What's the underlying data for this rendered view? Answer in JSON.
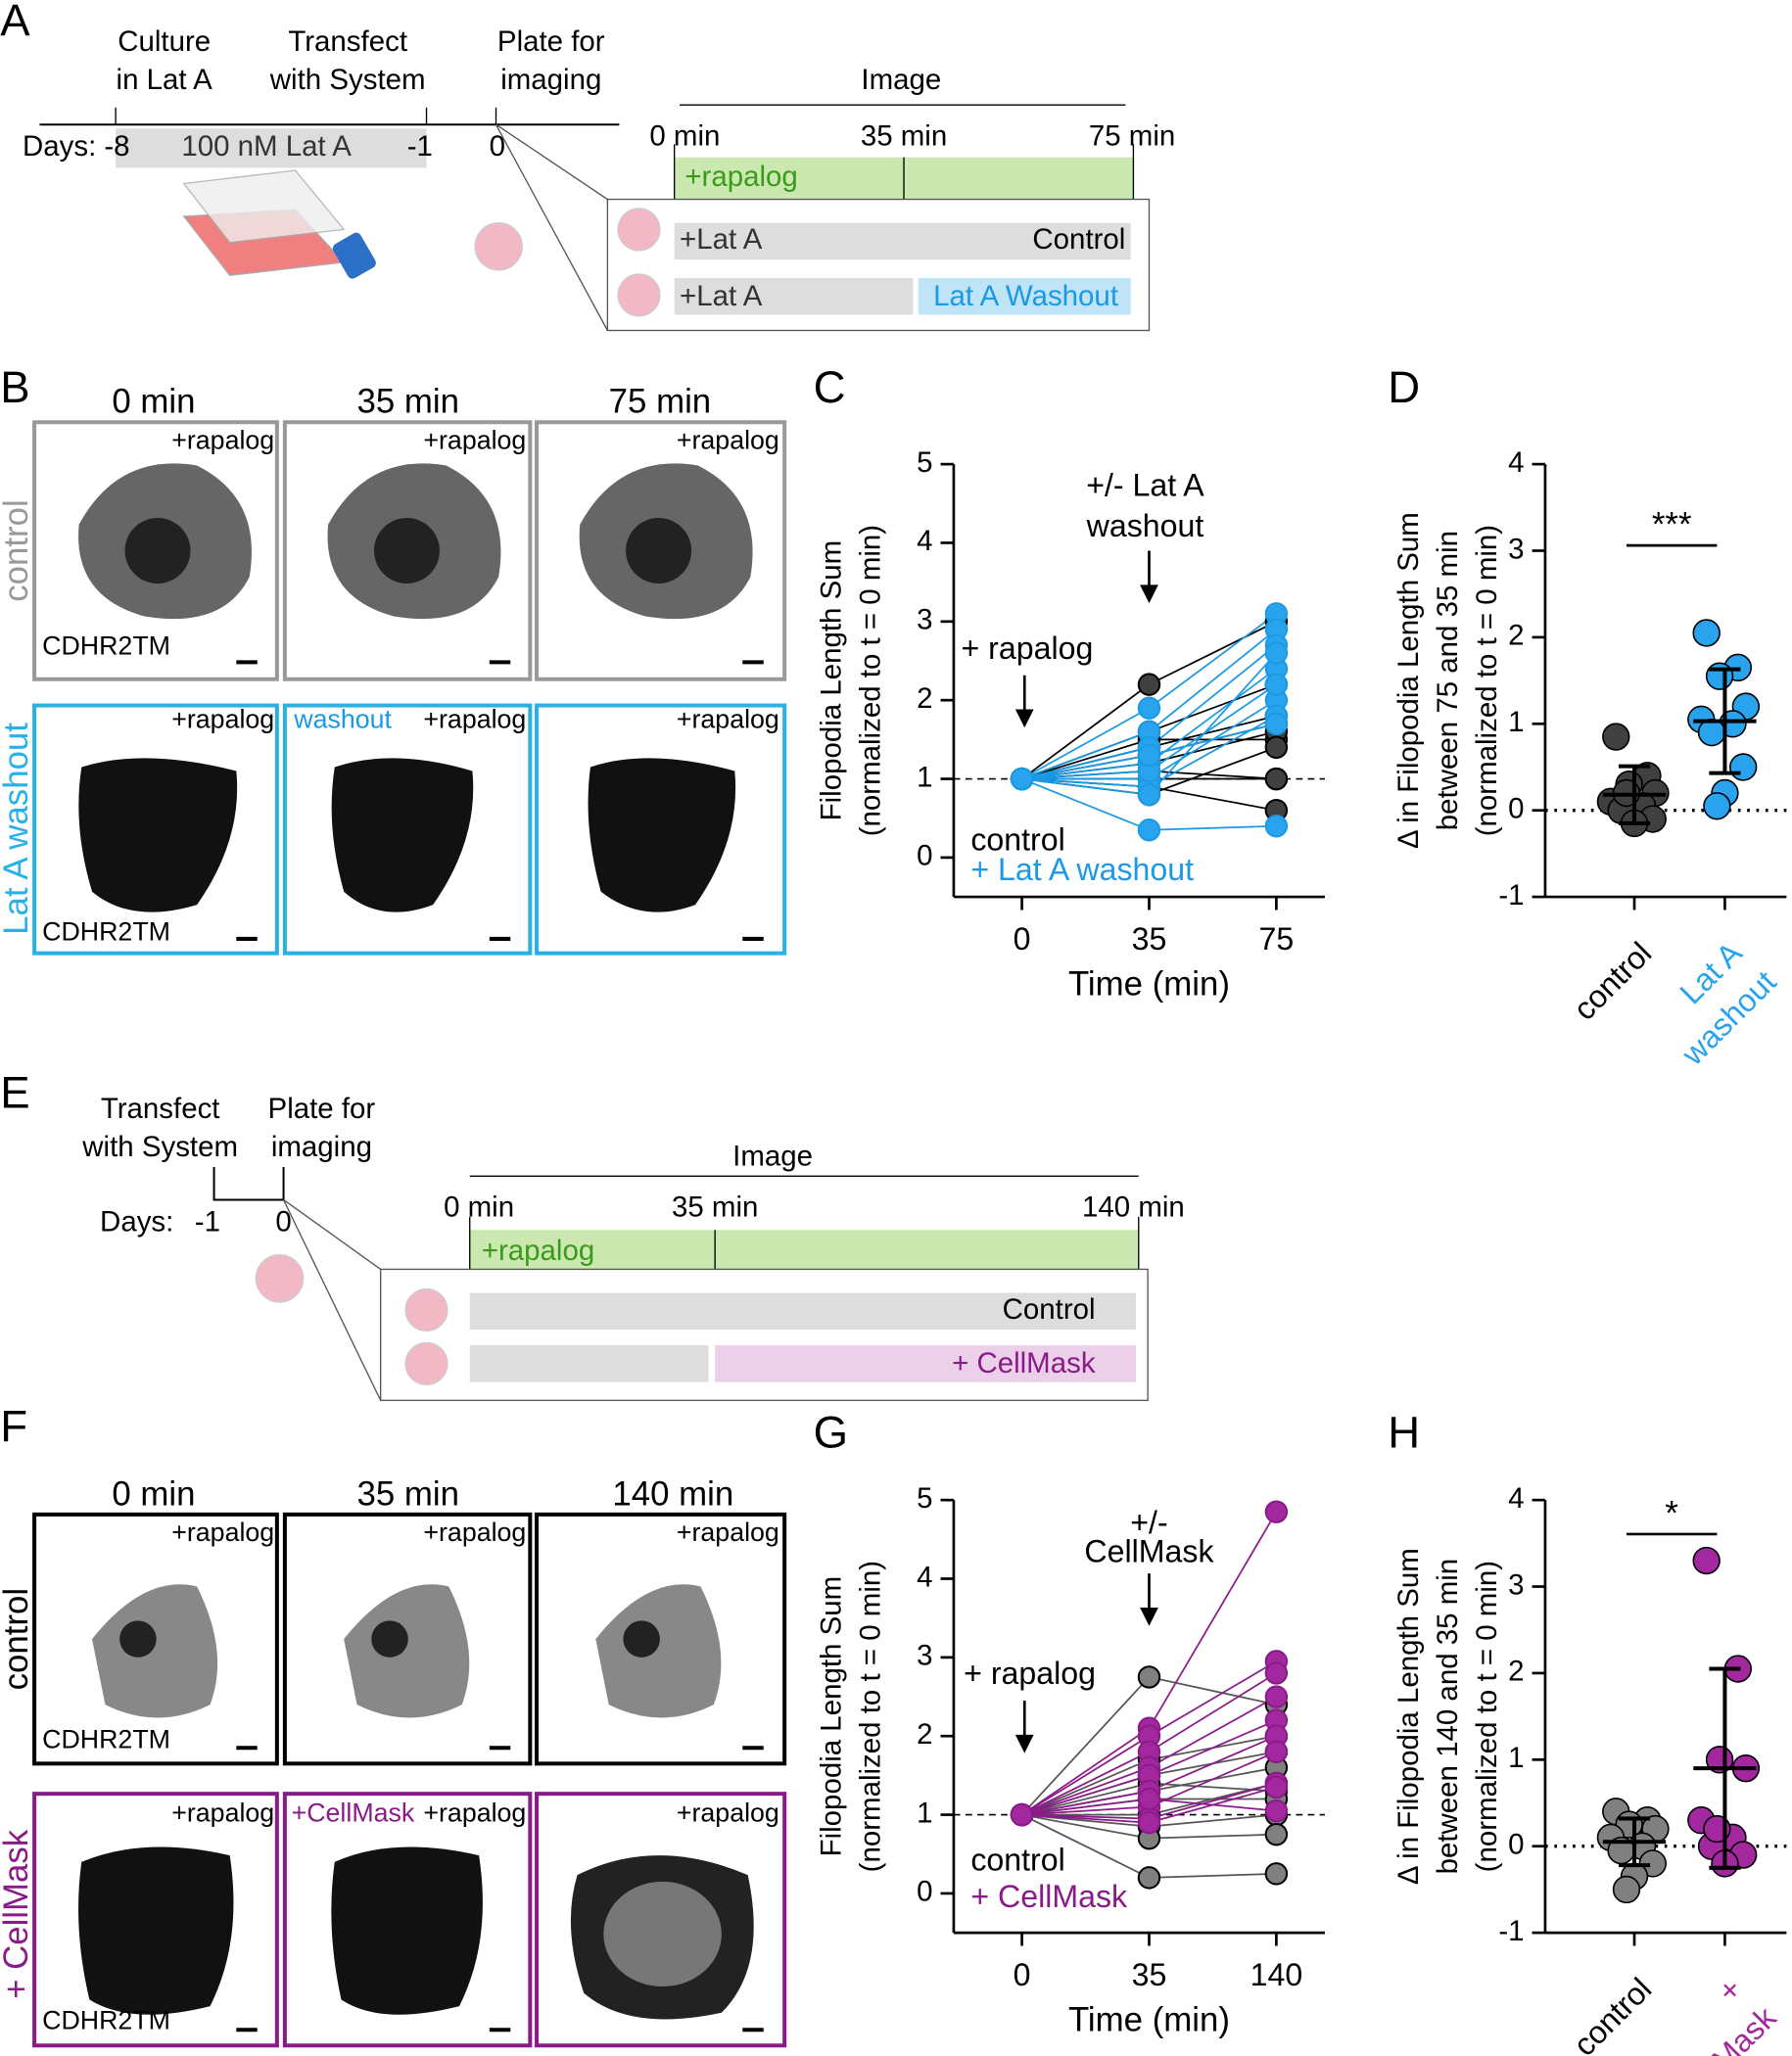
{
  "panel_labels": [
    "A",
    "B",
    "C",
    "D",
    "E",
    "F",
    "G",
    "H"
  ],
  "timeline_a": {
    "steps": [
      [
        "Culture",
        "in Lat A"
      ],
      [
        "Transfect",
        "with System"
      ],
      [
        "Plate for",
        "imaging"
      ]
    ],
    "days_label": "Days:",
    "days": [
      "-8",
      "-1",
      "0"
    ],
    "treatment": "100 nM Lat A",
    "image": "Image",
    "times": [
      "0 min",
      "35 min",
      "75 min"
    ],
    "rapalog": "+rapalog",
    "rows": [
      [
        "+Lat A",
        "Control"
      ],
      [
        "+Lat A",
        "Lat A Washout"
      ]
    ]
  },
  "images_b": {
    "times": [
      "0 min",
      "35 min",
      "75 min"
    ],
    "rows": [
      "control",
      "Lat A washout"
    ],
    "tag": "+rapalog",
    "washout": "washout",
    "marker": "CDHR2TM"
  },
  "timeline_e": {
    "steps": [
      [
        "Transfect",
        "with System"
      ],
      [
        "Plate for",
        "imaging"
      ]
    ],
    "days_label": "Days:",
    "days": [
      "-1",
      "0"
    ],
    "image": "Image",
    "times": [
      "0 min",
      "35 min",
      "140 min"
    ],
    "rapalog": "+rapalog",
    "rows": [
      "Control",
      "+ CellMask"
    ]
  },
  "images_f": {
    "times": [
      "0 min",
      "35 min",
      "140 min"
    ],
    "rows": [
      "control",
      "+ CellMask"
    ],
    "tag": "+rapalog",
    "cellmask": "+CellMask",
    "marker": "CDHR2TM"
  },
  "chart_data": [
    {
      "type": "line",
      "xlabel": "Time (min)",
      "ylabel": [
        "Filopodia Length Sum",
        "(normalized to t = 0 min)"
      ],
      "categories": [
        "0",
        "35",
        "75"
      ],
      "ylim": [
        -0.5,
        5
      ],
      "yticks": [
        0,
        1,
        2,
        3,
        4,
        5
      ],
      "hline": 1,
      "annotations": [
        [
          "+/- Lat A",
          "washout"
        ],
        [
          "+ rapalog"
        ]
      ],
      "series": [
        {
          "name": "control",
          "color": "#404040",
          "values": [
            [
              1,
              2.2,
              3.0
            ],
            [
              1,
              1.6,
              2.2
            ],
            [
              1,
              1.5,
              1.5
            ],
            [
              1,
              1.3,
              1.7
            ],
            [
              1,
              1.2,
              1.6
            ],
            [
              1,
              1.0,
              1.0
            ],
            [
              1,
              0.9,
              0.6
            ],
            [
              1,
              0.8,
              1.4
            ],
            [
              1,
              1.4,
              1.8
            ],
            [
              1,
              1.1,
              1.0
            ]
          ]
        },
        {
          "name": "+ Lat A washout",
          "color": "#29a3ee",
          "values": [
            [
              1,
              1.9,
              3.1
            ],
            [
              1,
              1.6,
              2.9
            ],
            [
              1,
              1.4,
              2.7
            ],
            [
              1,
              1.2,
              2.4
            ],
            [
              1,
              1.0,
              2.0
            ],
            [
              1,
              0.9,
              1.8
            ],
            [
              1,
              0.35,
              0.4
            ],
            [
              1,
              1.1,
              2.2
            ],
            [
              1,
              1.3,
              1.7
            ],
            [
              1,
              0.8,
              2.6
            ]
          ]
        }
      ]
    },
    {
      "type": "scatter",
      "ylabel": [
        "Δ in Filopodia Length Sum",
        "between 75 and 35 min",
        "(normalized to t = 0 min)"
      ],
      "categories": [
        [
          "control"
        ],
        [
          "Lat A",
          "washout"
        ]
      ],
      "colors": [
        "#404040",
        "#29a3ee"
      ],
      "ylim": [
        -1,
        4
      ],
      "yticks": [
        -1,
        0,
        1,
        2,
        3,
        4
      ],
      "hline": 0,
      "significance": "***",
      "values": [
        [
          0.85,
          0.4,
          0.3,
          0.2,
          0.1,
          0.05,
          0,
          -0.1,
          -0.15,
          0.2
        ],
        [
          2.05,
          1.65,
          1.55,
          1.2,
          1.05,
          1.0,
          0.9,
          0.5,
          0.2,
          0.05
        ]
      ],
      "mean": [
        0.18,
        1.03
      ],
      "sd": [
        0.33,
        0.6
      ]
    },
    {
      "type": "line",
      "xlabel": "Time (min)",
      "ylabel": [
        "Filopodia Length Sum",
        "(normalized to t = 0 min)"
      ],
      "categories": [
        "0",
        "35",
        "140"
      ],
      "ylim": [
        -0.5,
        5
      ],
      "yticks": [
        0,
        1,
        2,
        3,
        4,
        5
      ],
      "hline": 1,
      "annotations": [
        [
          "+/-",
          "CellMask"
        ],
        [
          "+ rapalog"
        ]
      ],
      "series": [
        {
          "name": "control",
          "color": "#808080",
          "values": [
            [
              1,
              2.75,
              2.4
            ],
            [
              1,
              1.7,
              2.0
            ],
            [
              1,
              1.5,
              1.8
            ],
            [
              1,
              1.3,
              1.6
            ],
            [
              1,
              1.0,
              1.4
            ],
            [
              1,
              0.85,
              1.0
            ],
            [
              1,
              0.7,
              0.75
            ],
            [
              1,
              0.2,
              0.25
            ],
            [
              1,
              1.4,
              1.3
            ],
            [
              1,
              1.2,
              1.2
            ]
          ]
        },
        {
          "name": "+ CellMask",
          "color": "#a3289f",
          "values": [
            [
              1,
              2.1,
              4.85
            ],
            [
              1,
              2.0,
              2.95
            ],
            [
              1,
              1.8,
              2.8
            ],
            [
              1,
              1.6,
              2.5
            ],
            [
              1,
              1.5,
              2.2
            ],
            [
              1,
              1.3,
              2.0
            ],
            [
              1,
              1.1,
              1.8
            ],
            [
              1,
              0.95,
              1.4
            ],
            [
              1,
              0.9,
              1.35
            ],
            [
              1,
              1.2,
              1.05
            ]
          ]
        }
      ]
    },
    {
      "type": "scatter",
      "ylabel": [
        "Δ in Filopodia Length Sum",
        "between 140 and 35 min",
        "(normalized to t = 0 min)"
      ],
      "categories": [
        [
          "control"
        ],
        [
          "+",
          "CellMask"
        ]
      ],
      "colors": [
        "#808080",
        "#a3289f"
      ],
      "ylim": [
        -1,
        4
      ],
      "yticks": [
        -1,
        0,
        1,
        2,
        3,
        4
      ],
      "hline": 0,
      "significance": "*",
      "values": [
        [
          0.4,
          0.3,
          0.25,
          0.2,
          0.1,
          0,
          -0.05,
          -0.2,
          -0.35,
          -0.5
        ],
        [
          3.3,
          2.05,
          1.0,
          0.9,
          0.3,
          0.1,
          0,
          -0.1,
          -0.2,
          0.2
        ]
      ],
      "mean": [
        0.05,
        0.9
      ],
      "sd": [
        0.27,
        1.15
      ]
    }
  ]
}
